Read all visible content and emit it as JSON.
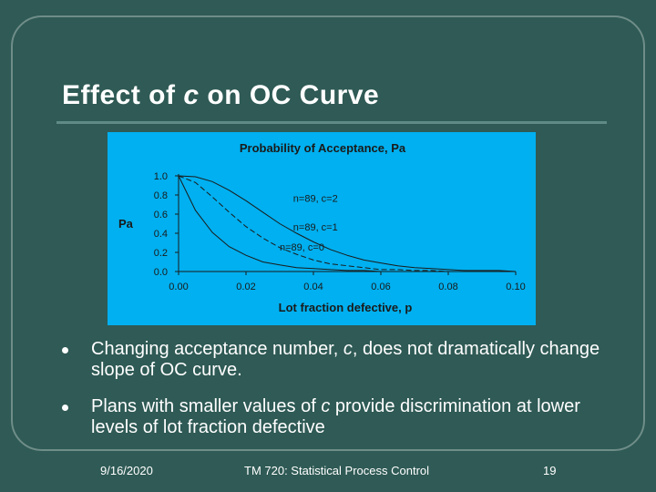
{
  "slide": {
    "title_prefix": "Effect of ",
    "title_var": "c",
    "title_suffix": " on OC Curve"
  },
  "bullets": [
    {
      "pre": "Changing acceptance number, ",
      "var": "c",
      "post": ", does not dramatically change slope of OC curve."
    },
    {
      "pre": "Plans with smaller values of ",
      "var": "c",
      "post": " provide discrimination at lower levels of lot fraction defective"
    }
  ],
  "footer": {
    "date": "9/16/2020",
    "course": "TM 720: Statistical Process Control",
    "page": "19"
  },
  "chart_data": {
    "type": "line",
    "title": "Probability of Acceptance, Pa",
    "xlabel": "Lot fraction defective, p",
    "ylabel": "Pa",
    "xlim": [
      0,
      0.1
    ],
    "ylim": [
      0,
      1.0
    ],
    "x_ticks": [
      "0.00",
      "0.02",
      "0.04",
      "0.06",
      "0.08",
      "0.10"
    ],
    "y_ticks": [
      "0.0",
      "0.2",
      "0.4",
      "0.6",
      "0.8",
      "1.0"
    ],
    "background": "#00b0f0",
    "line_color": "#1a1a1a",
    "x": [
      0,
      0.005,
      0.01,
      0.015,
      0.02,
      0.025,
      0.03,
      0.035,
      0.04,
      0.045,
      0.05,
      0.055,
      0.06,
      0.065,
      0.07,
      0.075,
      0.08,
      0.085,
      0.09,
      0.095,
      0.1
    ],
    "series": [
      {
        "name": "n=89, c=2",
        "values": [
          1.0,
          0.99,
          0.94,
          0.85,
          0.74,
          0.62,
          0.5,
          0.4,
          0.31,
          0.23,
          0.17,
          0.12,
          0.09,
          0.06,
          0.04,
          0.03,
          0.02,
          0.01,
          0.01,
          0.01,
          0.0
        ]
      },
      {
        "name": "n=89, c=1",
        "values": [
          1.0,
          0.93,
          0.78,
          0.62,
          0.47,
          0.35,
          0.25,
          0.18,
          0.12,
          0.08,
          0.06,
          0.04,
          0.02,
          0.02,
          0.01,
          0.01,
          0.0,
          0.0,
          0.0,
          0.0,
          0.0
        ]
      },
      {
        "name": "n=89, c=0",
        "values": [
          1.0,
          0.64,
          0.41,
          0.26,
          0.17,
          0.1,
          0.07,
          0.04,
          0.03,
          0.02,
          0.01,
          0.01,
          0.0,
          0.0,
          0.0,
          0.0,
          0.0,
          0.0,
          0.0,
          0.0,
          0.0
        ]
      }
    ]
  }
}
